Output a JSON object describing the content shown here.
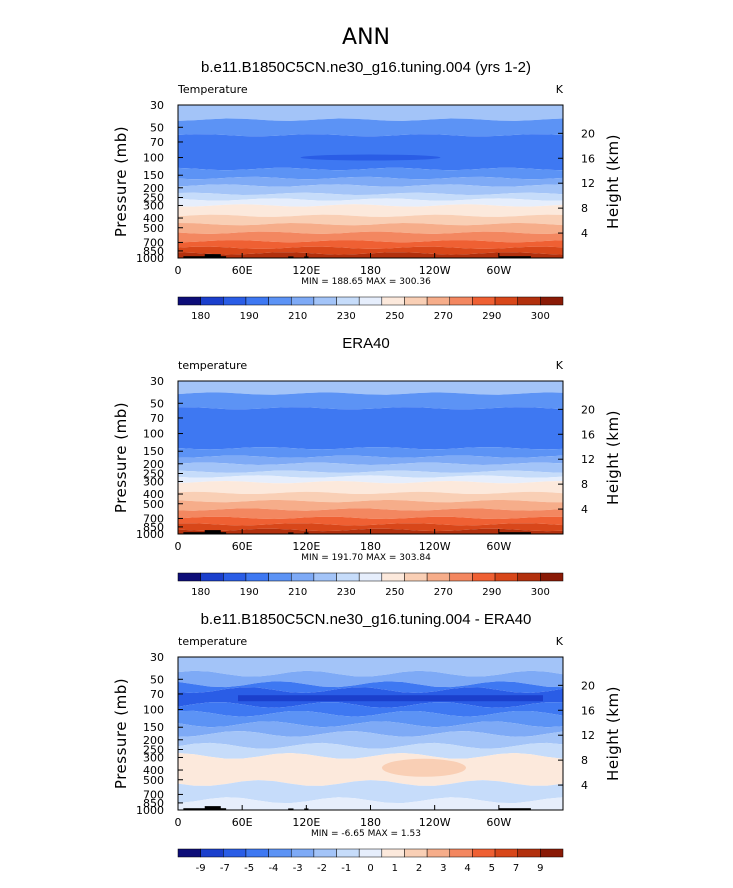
{
  "page_title": "ANN",
  "colors": {
    "temp_palette": [
      "#0d0d78",
      "#1b3fcc",
      "#2a5de6",
      "#3e78f2",
      "#5c93f5",
      "#7eaaf6",
      "#a3c4f8",
      "#c6dcfa",
      "#e6eefc",
      "#fce9dc",
      "#f9cfb5",
      "#f6ad8a",
      "#f38760",
      "#ef6033",
      "#d8471a",
      "#b2300d",
      "#8a1a06"
    ],
    "diff_palette": [
      "#0d0d78",
      "#1b3fcc",
      "#2a5de6",
      "#3e78f2",
      "#5c93f5",
      "#7eaaf6",
      "#a3c4f8",
      "#c6dcfa",
      "#e6eefc",
      "#fce9dc",
      "#f9cfb5",
      "#f6ad8a",
      "#f38760",
      "#ef6033",
      "#d8471a",
      "#b2300d",
      "#8a1a06"
    ],
    "topography": "#000000"
  },
  "chart_data": [
    {
      "type": "heatmap",
      "title": "b.e11.B1850C5CN.ne30_g16.tuning.004 (yrs 1-2)",
      "left_label": "Temperature",
      "right_label": "K",
      "ylabel": "Pressure  (mb)",
      "y2label": "Height  (km)",
      "x_ticks": [
        "0",
        "60E",
        "120E",
        "180",
        "120W",
        "60W"
      ],
      "y_ticks": [
        "30",
        "50",
        "70",
        "100",
        "150",
        "200",
        "250",
        "300",
        "400",
        "500",
        "700",
        "850",
        "1000"
      ],
      "y2_ticks": [
        "20",
        "16",
        "12",
        "8",
        "4"
      ],
      "stats": "MIN =  188.65   MAX =  300.36",
      "colorbar_labels": [
        "180",
        "190",
        "210",
        "230",
        "250",
        "270",
        "290",
        "300"
      ],
      "ylim": [
        30,
        1000
      ],
      "xlim": [
        0,
        360
      ]
    },
    {
      "type": "heatmap",
      "title": "ERA40",
      "left_label": "temperature",
      "right_label": "K",
      "ylabel": "Pressure  (mb)",
      "y2label": "Height  (km)",
      "x_ticks": [
        "0",
        "60E",
        "120E",
        "180",
        "120W",
        "60W"
      ],
      "y_ticks": [
        "30",
        "50",
        "70",
        "100",
        "150",
        "200",
        "250",
        "300",
        "400",
        "500",
        "700",
        "850",
        "1000"
      ],
      "y2_ticks": [
        "20",
        "16",
        "12",
        "8",
        "4"
      ],
      "stats": "MIN =  191.70   MAX =  303.84",
      "colorbar_labels": [
        "180",
        "190",
        "210",
        "230",
        "250",
        "270",
        "290",
        "300"
      ],
      "ylim": [
        30,
        1000
      ],
      "xlim": [
        0,
        360
      ]
    },
    {
      "type": "heatmap",
      "title": "b.e11.B1850C5CN.ne30_g16.tuning.004 - ERA40",
      "left_label": "temperature",
      "right_label": "K",
      "ylabel": "Pressure  (mb)",
      "y2label": "Height  (km)",
      "x_ticks": [
        "0",
        "60E",
        "120E",
        "180",
        "120W",
        "60W"
      ],
      "y_ticks": [
        "30",
        "50",
        "70",
        "100",
        "150",
        "200",
        "250",
        "300",
        "400",
        "500",
        "700",
        "850",
        "1000"
      ],
      "y2_ticks": [
        "20",
        "16",
        "12",
        "8",
        "4"
      ],
      "stats": "MIN =   -6.65   MAX =    1.53",
      "colorbar_labels": [
        "-9",
        "-7",
        "-5",
        "-4",
        "-3",
        "-2",
        "-1",
        "0",
        "1",
        "2",
        "3",
        "4",
        "5",
        "7",
        "9"
      ],
      "ylim": [
        30,
        1000
      ],
      "xlim": [
        0,
        360
      ]
    }
  ]
}
